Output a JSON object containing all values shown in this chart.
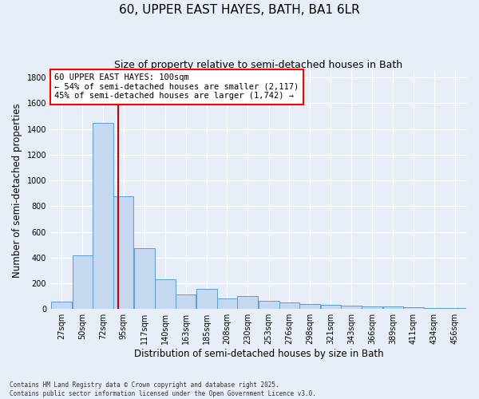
{
  "title": "60, UPPER EAST HAYES, BATH, BA1 6LR",
  "subtitle": "Size of property relative to semi-detached houses in Bath",
  "xlabel": "Distribution of semi-detached houses by size in Bath",
  "ylabel": "Number of semi-detached properties",
  "footer_line1": "Contains HM Land Registry data © Crown copyright and database right 2025.",
  "footer_line2": "Contains public sector information licensed under the Open Government Licence v3.0.",
  "annotation_title": "60 UPPER EAST HAYES: 100sqm",
  "annotation_line1": "← 54% of semi-detached houses are smaller (2,117)",
  "annotation_line2": "45% of semi-detached houses are larger (1,742) →",
  "property_size": 100,
  "bar_left_edges": [
    27,
    50,
    72,
    95,
    117,
    140,
    163,
    185,
    208,
    230,
    253,
    276,
    298,
    321,
    343,
    366,
    389,
    411,
    434,
    456
  ],
  "bar_widths": [
    23,
    22,
    23,
    22,
    23,
    23,
    22,
    23,
    22,
    23,
    23,
    22,
    23,
    22,
    23,
    23,
    22,
    23,
    22,
    23
  ],
  "bar_heights": [
    55,
    415,
    1450,
    875,
    470,
    230,
    115,
    155,
    80,
    100,
    65,
    50,
    40,
    35,
    28,
    22,
    18,
    13,
    8,
    7
  ],
  "bar_color": "#c5d8f0",
  "bar_edge_color": "#5b9bd5",
  "vline_x": 100,
  "vline_color": "#cc0000",
  "ylim": [
    0,
    1850
  ],
  "yticks": [
    0,
    200,
    400,
    600,
    800,
    1000,
    1200,
    1400,
    1600,
    1800
  ],
  "bg_color": "#e8eef8",
  "grid_color": "#ffffff",
  "title_fontsize": 11,
  "subtitle_fontsize": 9,
  "tick_fontsize": 7,
  "label_fontsize": 8.5,
  "annotation_fontsize": 7.5
}
